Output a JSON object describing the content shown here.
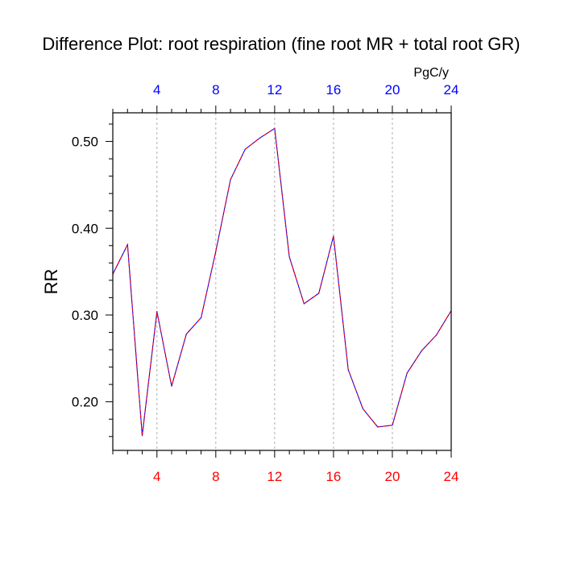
{
  "chart_data": {
    "type": "line",
    "title": "Difference Plot: root respiration (fine root MR + total root GR)",
    "ylabel": "RR",
    "units": "PgC/y",
    "xlim": [
      1,
      24
    ],
    "ylim": [
      0.144,
      0.533
    ],
    "x_ticks": [
      4,
      8,
      12,
      16,
      20,
      24
    ],
    "x_tick_labels": [
      "4",
      "8",
      "12",
      "16",
      "20",
      "24"
    ],
    "y_ticks": [
      0.2,
      0.3,
      0.4,
      0.5
    ],
    "y_tick_labels": [
      "0.20",
      "0.30",
      "0.40",
      "0.50"
    ],
    "grid": "vertical dashed at major x ticks",
    "colors": {
      "line_primary": "#ff0000",
      "line_secondary": "#0000ff",
      "bottom_tick_labels": "#ff0000",
      "top_tick_labels": "#0000ff",
      "grid": "#b0b0b0",
      "axis": "#000000"
    },
    "series": [
      {
        "name": "Difference",
        "x": [
          1,
          2,
          3,
          4,
          5,
          6,
          7,
          8,
          9,
          10,
          11,
          12,
          13,
          14,
          15,
          16,
          17,
          18,
          19,
          20,
          21,
          22,
          23,
          24
        ],
        "values": [
          0.347,
          0.381,
          0.161,
          0.304,
          0.218,
          0.278,
          0.297,
          0.373,
          0.456,
          0.491,
          0.504,
          0.515,
          0.367,
          0.313,
          0.325,
          0.391,
          0.237,
          0.192,
          0.171,
          0.173,
          0.233,
          0.259,
          0.277,
          0.305
        ]
      }
    ]
  }
}
